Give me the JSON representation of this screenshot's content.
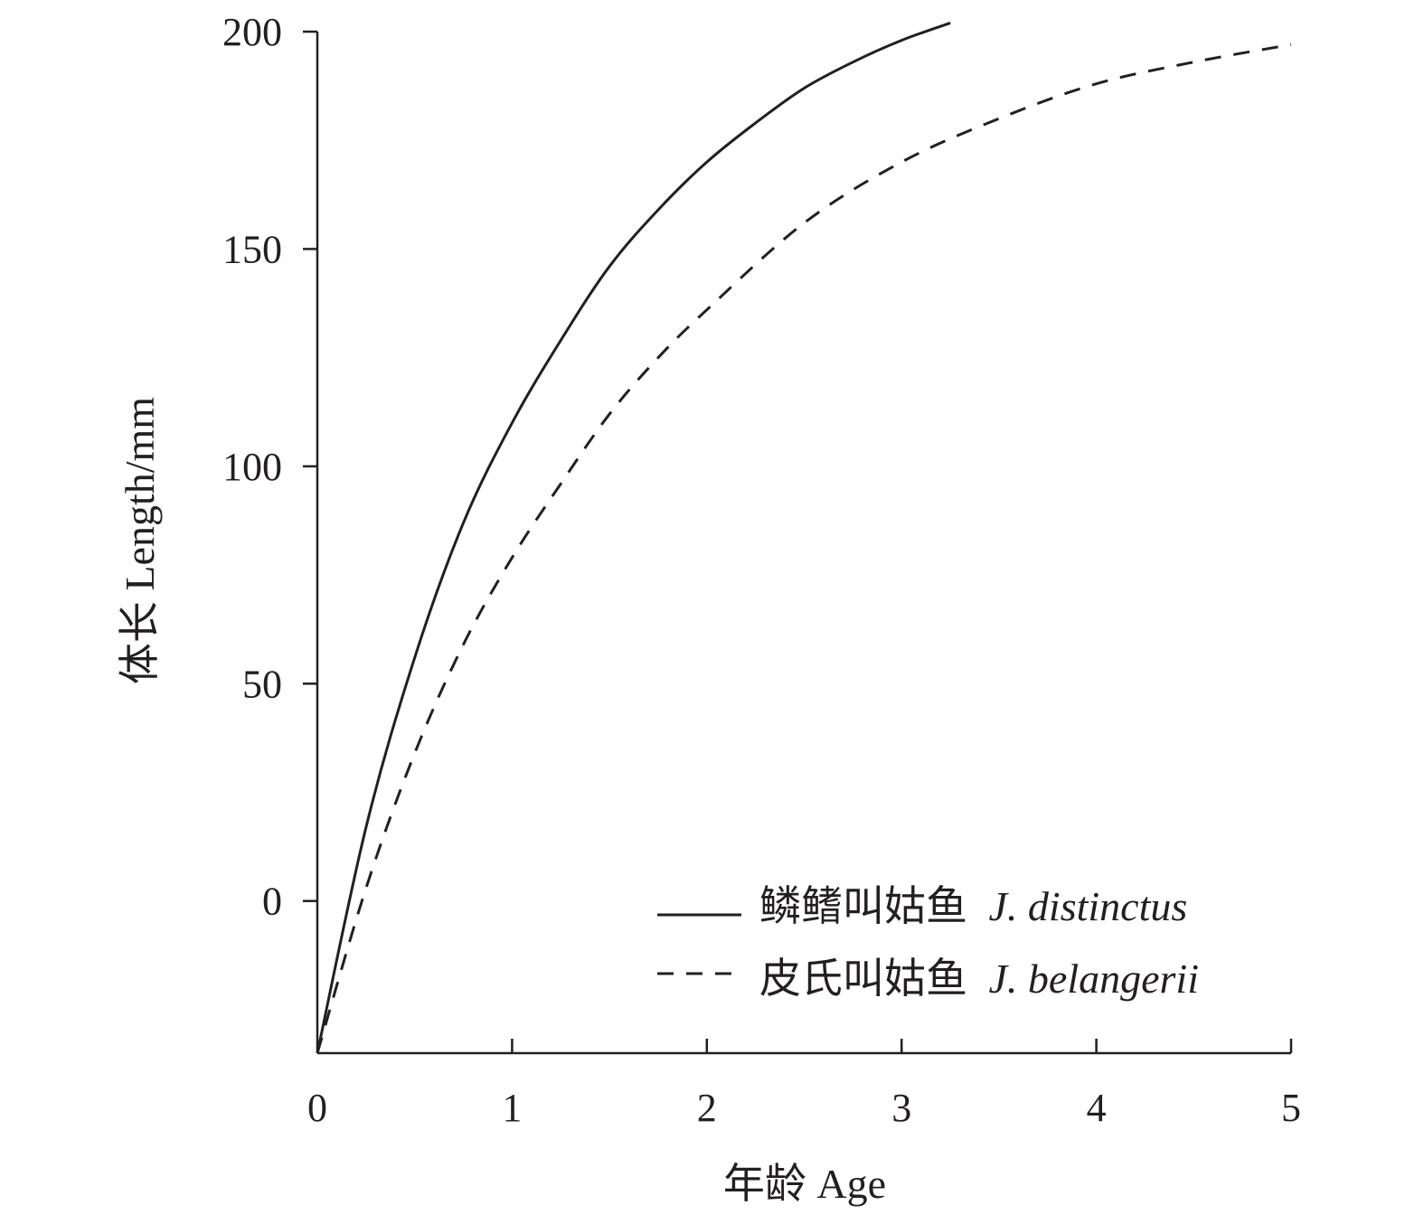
{
  "chart_data": {
    "type": "line",
    "title": "",
    "xlabel": "年龄 Age",
    "ylabel": "体长 Length/mm",
    "xlim": [
      0,
      5
    ],
    "ylim": [
      -35,
      200
    ],
    "x_ticks": [
      0,
      1,
      2,
      3,
      4,
      5
    ],
    "y_ticks": [
      0,
      50,
      100,
      150,
      200
    ],
    "grid": false,
    "legend_position": "bottom-right",
    "series": [
      {
        "name": "鳞鳍叫姑鱼 J. distinctus",
        "name_cn": "鳞鳍叫姑鱼",
        "name_latin": "J. distinctus",
        "style": "solid",
        "color": "#231f20",
        "x": [
          0,
          0.25,
          0.5,
          0.75,
          1,
          1.25,
          1.5,
          1.75,
          2,
          2.25,
          2.5,
          2.75,
          3,
          3.25
        ],
        "y": [
          -35,
          17,
          56,
          87,
          110,
          129,
          146,
          159,
          170,
          179,
          187,
          193,
          198,
          202
        ]
      },
      {
        "name": "皮氏叫姑鱼 J. belangerii",
        "name_cn": "皮氏叫姑鱼",
        "name_latin": "J. belangerii",
        "style": "dashed",
        "color": "#231f20",
        "x": [
          0,
          0.25,
          0.5,
          0.75,
          1,
          1.25,
          1.5,
          1.75,
          2,
          2.5,
          3,
          3.5,
          4,
          4.5,
          5
        ],
        "y": [
          -35,
          3,
          34,
          59,
          79,
          96,
          112,
          125,
          136,
          156,
          170,
          180,
          188,
          193,
          197
        ]
      }
    ]
  }
}
